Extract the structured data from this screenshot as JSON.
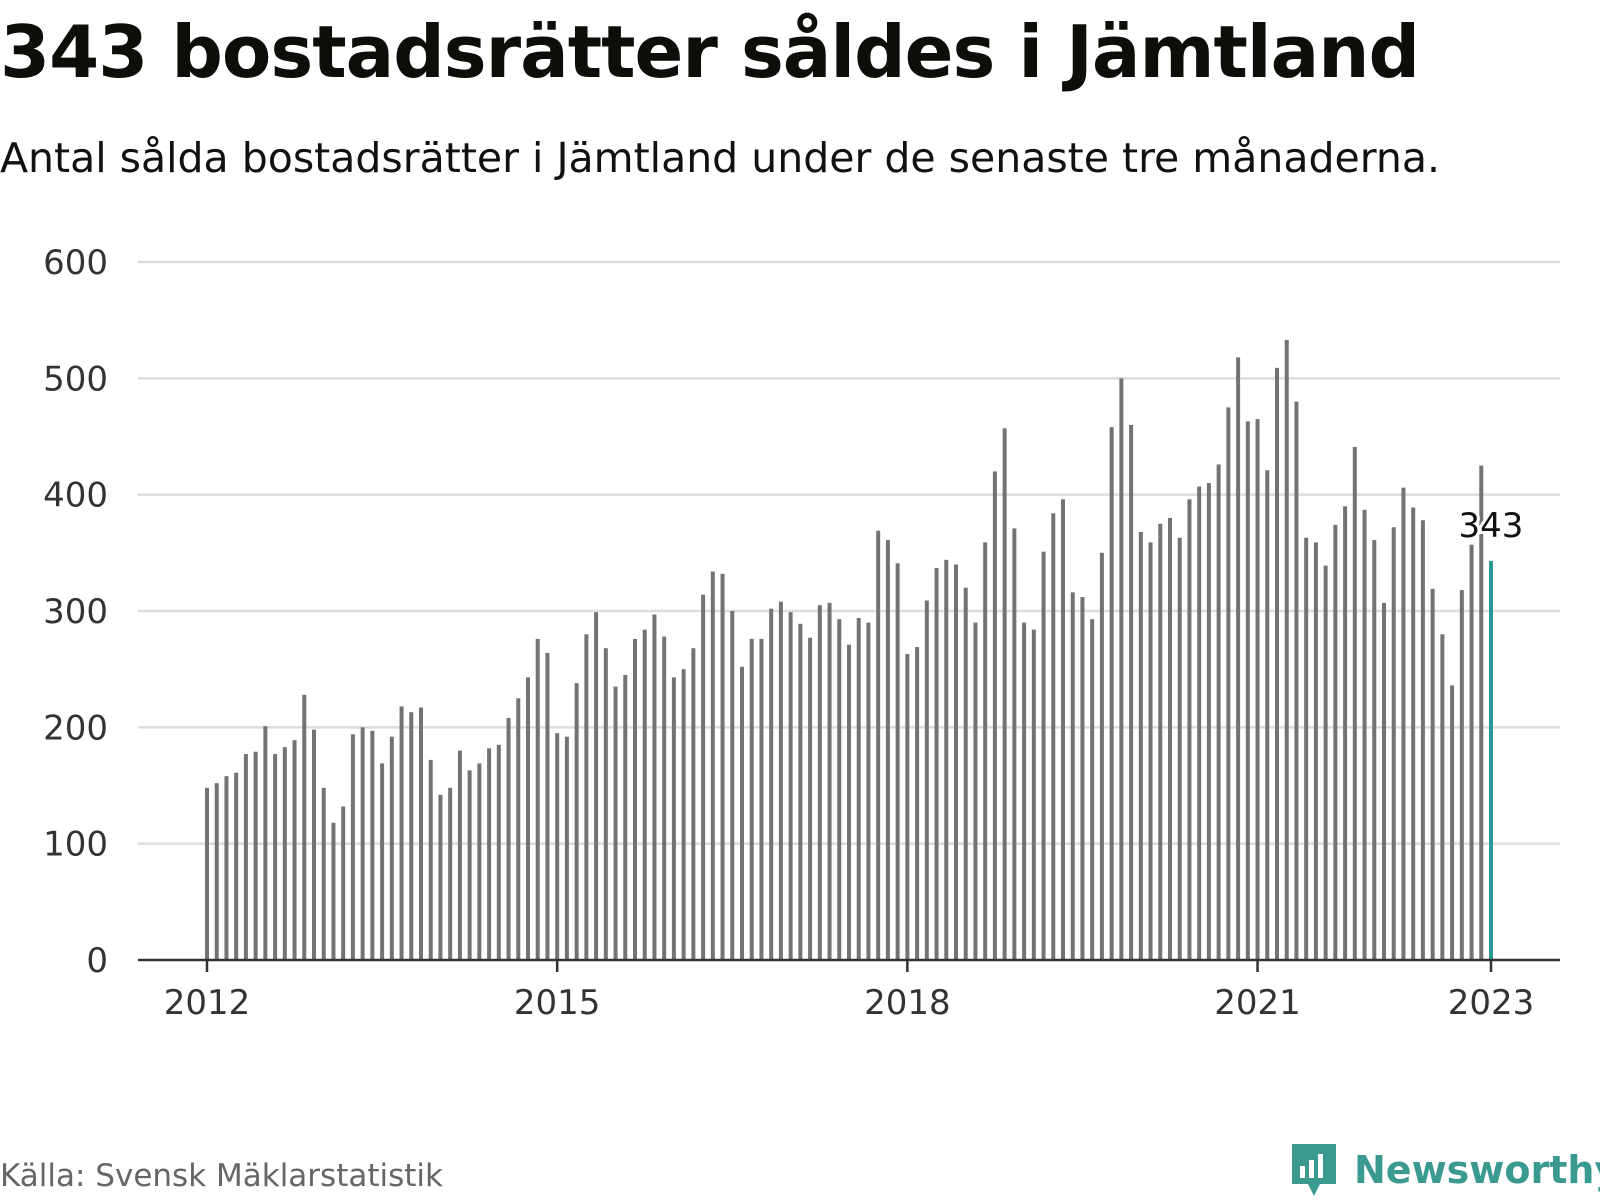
{
  "title": "343 bostadsrätter såldes i Jämtland",
  "subtitle": "Antal sålda bostadsrätter i Jämtland under de senaste tre månaderna.",
  "source": "Källa: Svensk Mäklarstatistik",
  "brand": {
    "name": "Newsworthy",
    "icon": "newsworthy-logo-icon",
    "color": "#3a9a8f"
  },
  "colors": {
    "bar": "#737373",
    "highlight": "#2b9a94",
    "grid": "#dddddd",
    "axis": "#333333"
  },
  "chart_data": {
    "type": "bar",
    "x_start": "2012-01",
    "x_end": "2023-01",
    "values": [
      148,
      152,
      158,
      161,
      177,
      179,
      201,
      177,
      183,
      189,
      228,
      198,
      148,
      118,
      132,
      194,
      200,
      197,
      169,
      192,
      218,
      213,
      217,
      172,
      142,
      148,
      180,
      163,
      169,
      182,
      185,
      208,
      225,
      243,
      276,
      264,
      195,
      192,
      238,
      280,
      299,
      268,
      235,
      245,
      276,
      284,
      297,
      278,
      243,
      250,
      268,
      314,
      334,
      332,
      300,
      252,
      276,
      276,
      302,
      308,
      299,
      289,
      277,
      305,
      307,
      293,
      271,
      294,
      290,
      369,
      361,
      341,
      263,
      269,
      309,
      337,
      344,
      340,
      320,
      290,
      359,
      420,
      457,
      371,
      290,
      284,
      351,
      384,
      396,
      316,
      312,
      293,
      350,
      458,
      500,
      460,
      368,
      359,
      375,
      380,
      363,
      396,
      407,
      410,
      426,
      475,
      518,
      463,
      465,
      421,
      509,
      533,
      480,
      363,
      359,
      339,
      374,
      390,
      441,
      387,
      361,
      307,
      372,
      406,
      389,
      378,
      319,
      280,
      236,
      318,
      357,
      425,
      343
    ],
    "highlight_value": 343,
    "highlight_label": "343",
    "x_ticks": [
      "2012",
      "2015",
      "2018",
      "2021",
      "2023"
    ],
    "y_ticks": [
      "0",
      "100",
      "200",
      "300",
      "400",
      "500",
      "600"
    ],
    "ylim": [
      0,
      600
    ],
    "grid": true,
    "xlabel": "",
    "ylabel": ""
  }
}
